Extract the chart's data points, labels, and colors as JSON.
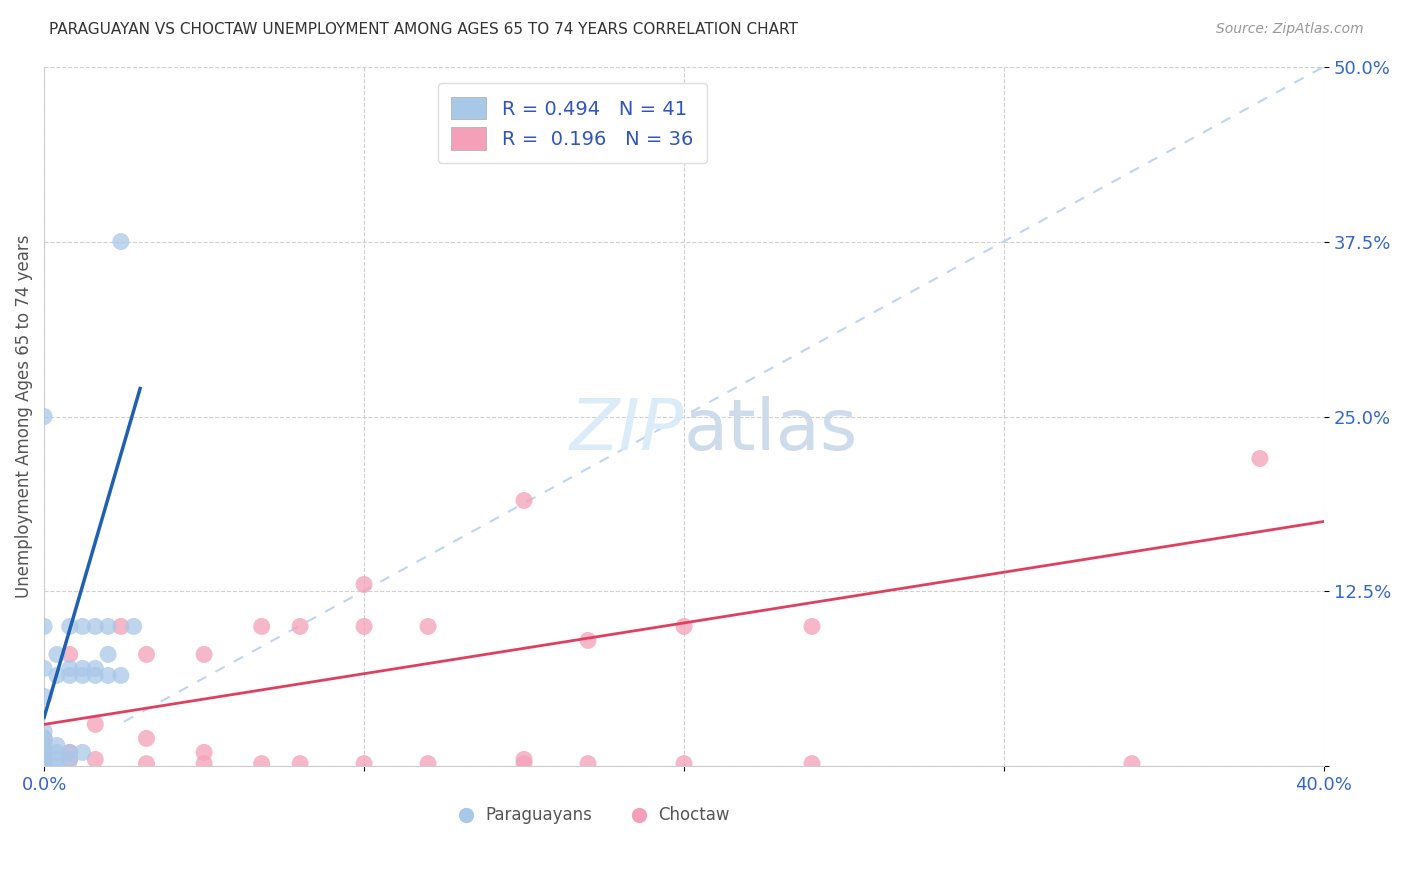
{
  "title": "PARAGUAYAN VS CHOCTAW UNEMPLOYMENT AMONG AGES 65 TO 74 YEARS CORRELATION CHART",
  "source": "Source: ZipAtlas.com",
  "ylabel": "Unemployment Among Ages 65 to 74 years",
  "xlim": [
    0.0,
    0.4
  ],
  "ylim": [
    0.0,
    0.5
  ],
  "xticks": [
    0.0,
    0.1,
    0.2,
    0.3,
    0.4
  ],
  "yticks": [
    0.0,
    0.125,
    0.25,
    0.375,
    0.5
  ],
  "xticklabels": [
    "0.0%",
    "",
    "",
    "",
    "40.0%"
  ],
  "yticklabels": [
    "",
    "12.5%",
    "25.0%",
    "37.5%",
    "50.0%"
  ],
  "legend_entries": [
    "Paraguayans",
    "Choctaw"
  ],
  "R_paraguayan": 0.494,
  "N_paraguayan": 41,
  "R_choctaw": 0.196,
  "N_choctaw": 36,
  "paraguayan_color": "#a8c8e8",
  "choctaw_color": "#f4a0b8",
  "paraguayan_line_color": "#2060b0",
  "choctaw_line_color": "#e04060",
  "diagonal_color": "#b8d0f0",
  "background_color": "#ffffff",
  "paraguayan_x": [
    0.0,
    0.0,
    0.0,
    0.0,
    0.0,
    0.0,
    0.0,
    0.0,
    0.0,
    0.0,
    0.0,
    0.0,
    0.0,
    0.0,
    0.0,
    0.0,
    0.0,
    0.004,
    0.004,
    0.004,
    0.004,
    0.004,
    0.004,
    0.008,
    0.008,
    0.008,
    0.008,
    0.008,
    0.012,
    0.012,
    0.012,
    0.012,
    0.016,
    0.016,
    0.016,
    0.02,
    0.02,
    0.02,
    0.024,
    0.024,
    0.028
  ],
  "paraguayan_y": [
    0.0,
    0.0,
    0.0,
    0.002,
    0.004,
    0.006,
    0.008,
    0.01,
    0.012,
    0.015,
    0.018,
    0.02,
    0.025,
    0.05,
    0.07,
    0.1,
    0.25,
    0.0,
    0.005,
    0.01,
    0.015,
    0.065,
    0.08,
    0.005,
    0.01,
    0.065,
    0.07,
    0.1,
    0.01,
    0.065,
    0.07,
    0.1,
    0.065,
    0.07,
    0.1,
    0.065,
    0.08,
    0.1,
    0.065,
    0.375,
    0.1
  ],
  "choctaw_x": [
    0.0,
    0.0,
    0.0,
    0.0,
    0.008,
    0.008,
    0.008,
    0.016,
    0.016,
    0.024,
    0.032,
    0.032,
    0.032,
    0.05,
    0.05,
    0.05,
    0.068,
    0.068,
    0.08,
    0.08,
    0.1,
    0.1,
    0.1,
    0.12,
    0.12,
    0.15,
    0.15,
    0.15,
    0.17,
    0.17,
    0.2,
    0.2,
    0.24,
    0.24,
    0.34,
    0.38
  ],
  "choctaw_y": [
    0.0,
    0.005,
    0.01,
    0.02,
    0.005,
    0.01,
    0.08,
    0.005,
    0.03,
    0.1,
    0.002,
    0.02,
    0.08,
    0.002,
    0.01,
    0.08,
    0.002,
    0.1,
    0.002,
    0.1,
    0.002,
    0.1,
    0.13,
    0.002,
    0.1,
    0.002,
    0.005,
    0.19,
    0.002,
    0.09,
    0.002,
    0.1,
    0.002,
    0.1,
    0.002,
    0.22
  ],
  "par_line_x": [
    0.0,
    0.03
  ],
  "par_line_y": [
    0.035,
    0.27
  ],
  "cho_line_x": [
    0.0,
    0.4
  ],
  "cho_line_y": [
    0.03,
    0.175
  ],
  "diag_line_x": [
    0.025,
    0.4
  ],
  "diag_line_y": [
    0.032,
    0.5
  ]
}
